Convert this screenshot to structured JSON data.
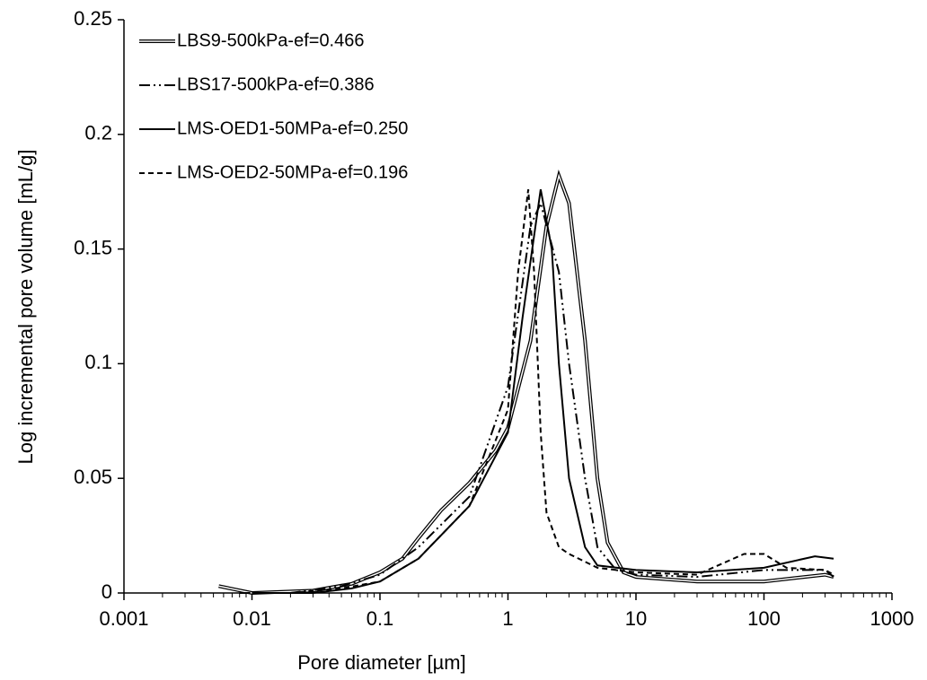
{
  "chart_data": {
    "type": "line",
    "x_label": "Pore diameter [µm]",
    "y_label": "Log incremental pore volume [mL/g]",
    "x_scale": "log",
    "xlim": [
      0.001,
      1000
    ],
    "xticks": [
      0.001,
      0.01,
      0.1,
      1,
      10,
      100,
      1000
    ],
    "ylim": [
      0,
      0.25
    ],
    "yticks": [
      0,
      0.05,
      0.1,
      0.15,
      0.2,
      0.25
    ],
    "legend": "top-left",
    "series": [
      {
        "name": "LBS9-500kPa-ef=0.466",
        "color": "#000000",
        "style": "double",
        "x": [
          0.0055,
          0.01,
          0.03,
          0.06,
          0.1,
          0.15,
          0.2,
          0.3,
          0.5,
          0.8,
          1,
          1.5,
          2,
          2.5,
          3,
          4,
          5,
          6,
          8,
          10,
          30,
          100,
          300,
          350
        ],
        "values": [
          0.003,
          0.0,
          0.001,
          0.004,
          0.009,
          0.015,
          0.024,
          0.036,
          0.048,
          0.062,
          0.072,
          0.11,
          0.16,
          0.182,
          0.17,
          0.11,
          0.05,
          0.022,
          0.009,
          0.007,
          0.005,
          0.005,
          0.008,
          0.007
        ]
      },
      {
        "name": "LBS17-500kPa-ef=0.386",
        "color": "#000000",
        "style": "dash-dot-dot",
        "x": [
          0.008,
          0.02,
          0.05,
          0.1,
          0.2,
          0.5,
          1,
          1.5,
          1.8,
          2.5,
          3,
          4,
          5,
          7,
          10,
          30,
          100,
          300,
          350
        ],
        "values": [
          0.0,
          0.0,
          0.003,
          0.008,
          0.02,
          0.042,
          0.09,
          0.16,
          0.17,
          0.14,
          0.1,
          0.05,
          0.02,
          0.01,
          0.008,
          0.007,
          0.01,
          0.01,
          0.007
        ]
      },
      {
        "name": "LMS-OED1-50MPa-ef=0.250",
        "color": "#000000",
        "style": "solid",
        "x": [
          0.01,
          0.03,
          0.06,
          0.1,
          0.2,
          0.5,
          1,
          1.3,
          1.8,
          2.2,
          2.5,
          3,
          4,
          5,
          10,
          30,
          100,
          250,
          350
        ],
        "values": [
          0.0,
          0.0,
          0.002,
          0.005,
          0.015,
          0.038,
          0.07,
          0.12,
          0.176,
          0.15,
          0.1,
          0.05,
          0.02,
          0.012,
          0.01,
          0.009,
          0.011,
          0.016,
          0.015
        ]
      },
      {
        "name": "LMS-OED2-50MPa-ef=0.196",
        "color": "#000000",
        "style": "dashed",
        "x": [
          0.02,
          0.05,
          0.1,
          0.2,
          0.5,
          1,
          1.2,
          1.44,
          1.6,
          1.8,
          2,
          2.5,
          3,
          5,
          10,
          30,
          70,
          100,
          150,
          300,
          350
        ],
        "values": [
          0.0,
          0.002,
          0.005,
          0.015,
          0.038,
          0.08,
          0.14,
          0.176,
          0.14,
          0.07,
          0.035,
          0.02,
          0.017,
          0.011,
          0.009,
          0.008,
          0.017,
          0.017,
          0.011,
          0.01,
          0.008
        ]
      }
    ]
  }
}
